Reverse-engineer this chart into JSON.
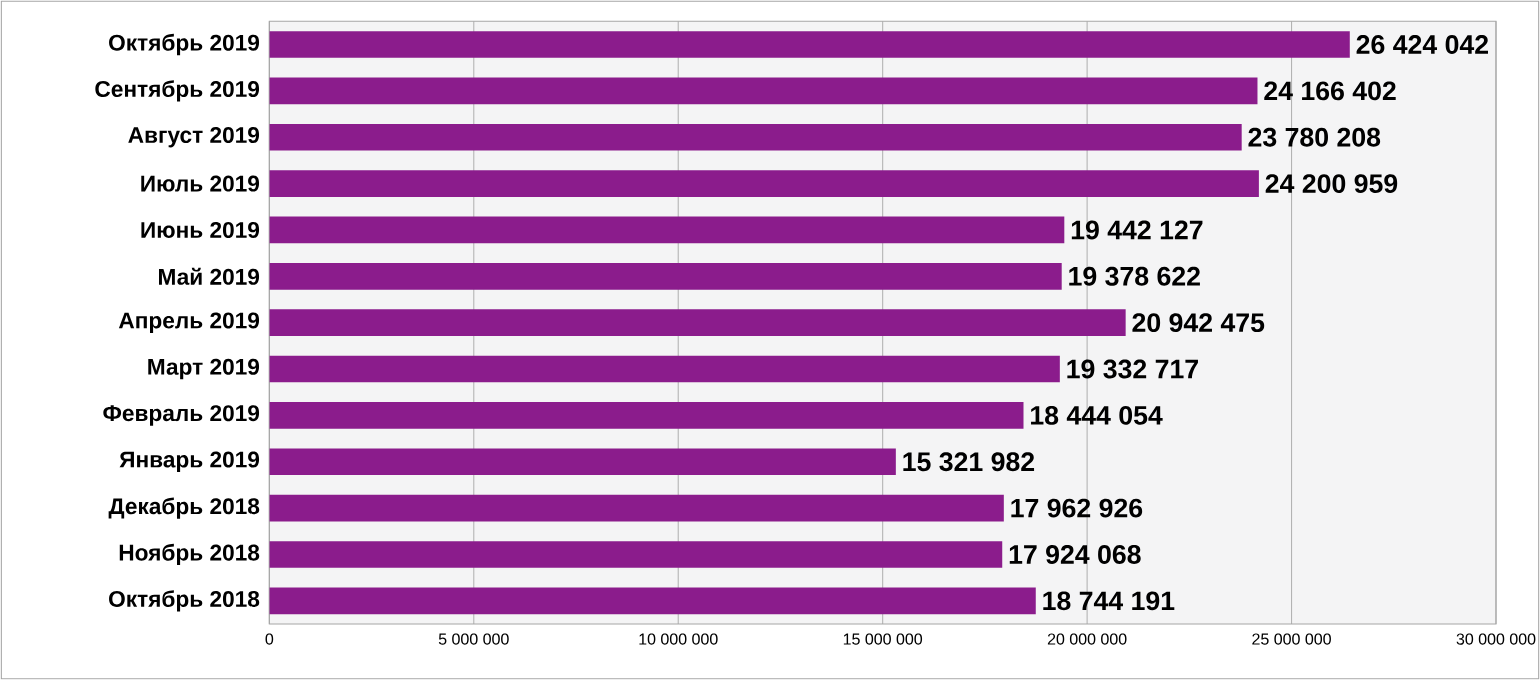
{
  "chart_data": {
    "type": "bar",
    "orientation": "horizontal",
    "categories": [
      "Октябрь 2019",
      "Сентябрь 2019",
      "Август 2019",
      "Июль 2019",
      "Июнь 2019",
      "Май 2019",
      "Апрель 2019",
      "Март 2019",
      "Февраль 2019",
      "Январь 2019",
      "Декабрь 2018",
      "Ноябрь 2018",
      "Октябрь 2018"
    ],
    "values": [
      26424042,
      24166402,
      23780208,
      24200959,
      19442127,
      19378622,
      20942475,
      19332717,
      18444054,
      15321982,
      17962926,
      17924068,
      18744191
    ],
    "value_labels": [
      "26 424 042",
      "24 166 402",
      "23 780 208",
      "24 200 959",
      "19 442 127",
      "19 378 622",
      "20 942 475",
      "19 332 717",
      "18 444 054",
      "15 321 982",
      "17 962 926",
      "17 924 068",
      "18 744 191"
    ],
    "color": "#8b1c8c",
    "xlim": [
      0,
      30000000
    ],
    "xticks": [
      0,
      {
        "value": 5000000,
        "label": "5 000 000"
      },
      {
        "value": 10000000,
        "label": "10 000 000"
      },
      {
        "value": 15000000,
        "label": "15 000 000"
      },
      {
        "value": 20000000,
        "label": "20 000 000"
      },
      {
        "value": 25000000,
        "label": "25 000 000"
      },
      {
        "value": 30000000,
        "label": "30 000 000"
      }
    ],
    "grid": "x"
  }
}
